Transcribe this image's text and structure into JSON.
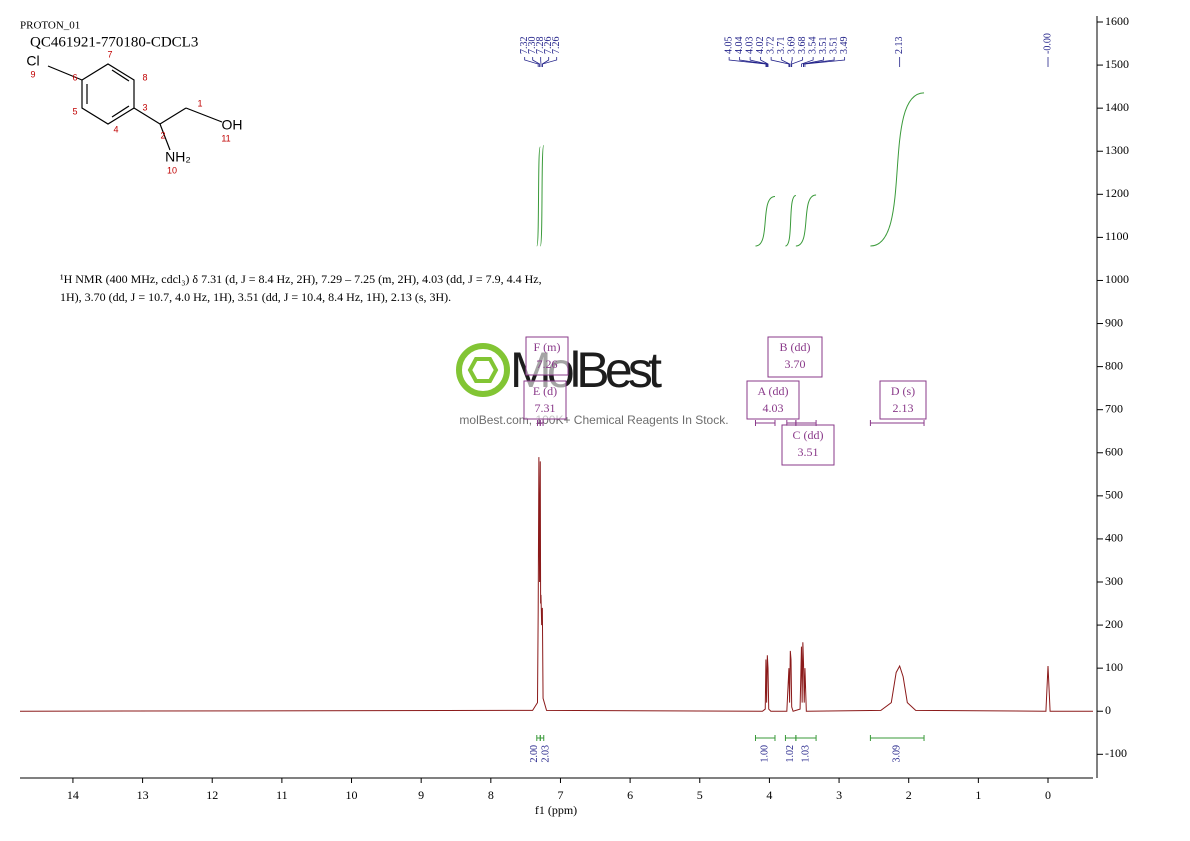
{
  "chart_data": {
    "type": "line",
    "title": "PROTON_01",
    "subtitle": "QC461921-770180-CDCL3",
    "x_label": "f1 (ppm)",
    "xlim": [
      14.76,
      -0.646
    ],
    "xticks": [
      14,
      13,
      12,
      11,
      10,
      9,
      8,
      7,
      6,
      5,
      4,
      3,
      2,
      1,
      0
    ],
    "ylim": [
      -155,
      1600
    ],
    "yticks": [
      -100,
      0,
      100,
      200,
      300,
      400,
      500,
      600,
      700,
      800,
      900,
      1000,
      1100,
      1200,
      1300,
      1400,
      1500,
      1600
    ],
    "x": [
      14.76,
      7.4,
      7.33,
      7.32,
      7.31,
      7.3,
      7.29,
      7.285,
      7.28,
      7.27,
      7.26,
      7.25,
      7.2,
      4.1,
      4.06,
      4.05,
      4.04,
      4.03,
      4.02,
      4.01,
      3.98,
      3.75,
      3.72,
      3.71,
      3.7,
      3.69,
      3.68,
      3.66,
      3.56,
      3.54,
      3.53,
      3.52,
      3.51,
      3.5,
      3.49,
      3.47,
      2.4,
      2.25,
      2.18,
      2.13,
      2.08,
      2.02,
      1.9,
      0.03,
      0,
      -0.03,
      -0.646
    ],
    "series": [
      {
        "color": "#8b1a1a",
        "values": [
          0,
          2,
          20,
          230,
          590,
          300,
          580,
          250,
          270,
          200,
          240,
          30,
          2,
          0,
          5,
          120,
          20,
          130,
          100,
          5,
          0,
          0,
          100,
          20,
          140,
          120,
          10,
          0,
          5,
          150,
          20,
          160,
          110,
          20,
          100,
          0,
          2,
          20,
          90,
          105,
          80,
          20,
          2,
          0,
          105,
          0,
          0
        ]
      }
    ],
    "peak_labels": [
      7.32,
      {
        "value": 7.3,
        "label": "7.30"
      },
      7.28,
      7.26,
      7.26,
      4.05,
      4.04,
      4.03,
      4.02,
      3.72,
      3.71,
      3.69,
      3.68,
      3.54,
      3.51,
      3.51,
      3.49,
      2.13,
      {
        "value": 0,
        "label": "-0.00"
      }
    ],
    "multiplets": [
      {
        "label": "F (m)",
        "shift": 7.26,
        "from": 7.29,
        "to": 7.25
      },
      {
        "label": "E (d)",
        "shift": 7.31,
        "from": 7.33,
        "to": 7.29
      },
      {
        "label": "B (dd)",
        "shift": {
          "value": 3.7,
          "label": "3.70"
        },
        "from": 3.75,
        "to": 3.62
      },
      {
        "label": "A (dd)",
        "shift": 4.03,
        "from": 4.2,
        "to": 3.92
      },
      {
        "label": "C (dd)",
        "shift": 3.51,
        "from": 3.62,
        "to": 3.33
      },
      {
        "label": "D (s)",
        "shift": 2.13,
        "from": 2.55,
        "to": 1.78
      }
    ],
    "integrals": [
      {
        "integral": {
          "value": 2,
          "label": "2.00"
        },
        "from": 7.34,
        "to": 7.29
      },
      {
        "integral": 2.03,
        "from": 7.29,
        "to": 7.24
      },
      {
        "integral": {
          "value": 1,
          "label": "1.00"
        },
        "from": 4.2,
        "to": 3.92
      },
      {
        "integral": 1.02,
        "from": 3.77,
        "to": 3.62
      },
      {
        "integral": 1.03,
        "from": 3.62,
        "to": 3.33
      },
      {
        "integral": 3.09,
        "from": 2.55,
        "to": 1.78
      }
    ],
    "description": [
      "¹H NMR (400 MHz, cdcl₃) δ 7.31 (d, J = 8.4 Hz, 2H), 7.29 – 7.25 (m, 2H), 4.03 (dd, J = 7.9, 4.4 Hz,",
      "1H), 3.70 (dd, J = 10.7, 4.0 Hz, 1H), 3.51 (dd, J = 10.4, 8.4 Hz, 1H), 2.13 (s, 3H)."
    ]
  },
  "structure": {
    "atoms": [
      "Cl",
      "OH",
      "NH₂"
    ],
    "numbers": [
      "1",
      "2",
      "3",
      "4",
      "5",
      "6",
      "7",
      "8",
      "9",
      "10",
      "11"
    ]
  },
  "watermark": {
    "brand": "MolBest",
    "slogan": "molBest.com, 100K+ Chemical Reagents In Stock."
  }
}
